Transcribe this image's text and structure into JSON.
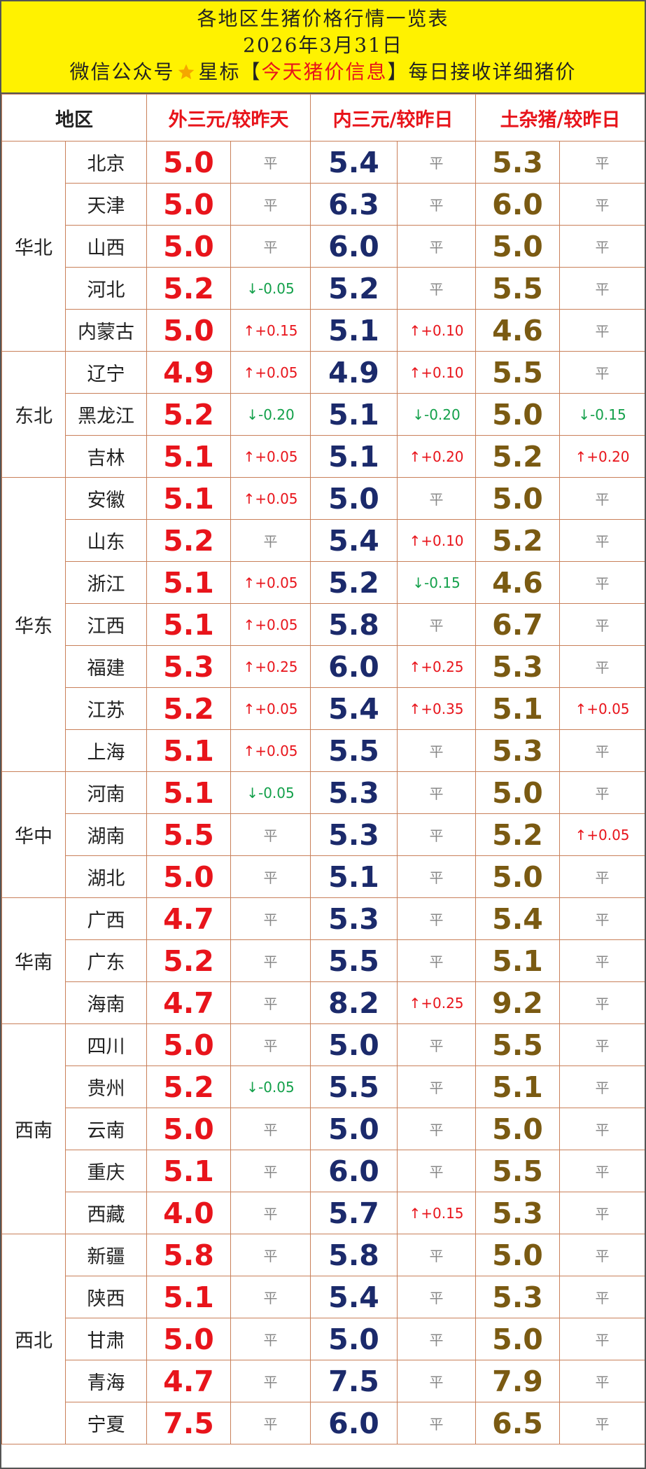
{
  "header": {
    "title": "各地区生猪价格行情一览表",
    "date": "2026年3月31日",
    "subtitle_prefix": "微信公众号",
    "subtitle_mid": "星标【",
    "subtitle_highlight": "今天猪价信息",
    "subtitle_suffix": "】每日接收详细猪价"
  },
  "table": {
    "columns": [
      "地区",
      "外三元/较昨天",
      "内三元/较昨日",
      "土杂猪/较昨日"
    ],
    "groups": [
      {
        "region": "华北",
        "rows": [
          {
            "name": "北京",
            "values": [
              "5.0",
              "平",
              "5.4",
              "平",
              "5.3",
              "平"
            ]
          },
          {
            "name": "天津",
            "values": [
              "5.0",
              "平",
              "6.3",
              "平",
              "6.0",
              "平"
            ]
          },
          {
            "name": "山西",
            "values": [
              "5.0",
              "平",
              "6.0",
              "平",
              "5.0",
              "平"
            ]
          },
          {
            "name": "河北",
            "values": [
              "5.2",
              "↓-0.05",
              "5.2",
              "平",
              "5.5",
              "平"
            ]
          },
          {
            "name": "内蒙古",
            "values": [
              "5.0",
              "↑+0.15",
              "5.1",
              "↑+0.10",
              "4.6",
              "平"
            ]
          }
        ]
      },
      {
        "region": "东北",
        "rows": [
          {
            "name": "辽宁",
            "values": [
              "4.9",
              "↑+0.05",
              "4.9",
              "↑+0.10",
              "5.5",
              "平"
            ]
          },
          {
            "name": "黑龙江",
            "values": [
              "5.2",
              "↓-0.20",
              "5.1",
              "↓-0.20",
              "5.0",
              "↓-0.15"
            ]
          },
          {
            "name": "吉林",
            "values": [
              "5.1",
              "↑+0.05",
              "5.1",
              "↑+0.20",
              "5.2",
              "↑+0.20"
            ]
          }
        ]
      },
      {
        "region": "华东",
        "rows": [
          {
            "name": "安徽",
            "values": [
              "5.1",
              "↑+0.05",
              "5.0",
              "平",
              "5.0",
              "平"
            ]
          },
          {
            "name": "山东",
            "values": [
              "5.2",
              "平",
              "5.4",
              "↑+0.10",
              "5.2",
              "平"
            ]
          },
          {
            "name": "浙江",
            "values": [
              "5.1",
              "↑+0.05",
              "5.2",
              "↓-0.15",
              "4.6",
              "平"
            ]
          },
          {
            "name": "江西",
            "values": [
              "5.1",
              "↑+0.05",
              "5.8",
              "平",
              "6.7",
              "平"
            ]
          },
          {
            "name": "福建",
            "values": [
              "5.3",
              "↑+0.25",
              "6.0",
              "↑+0.25",
              "5.3",
              "平"
            ]
          },
          {
            "name": "江苏",
            "values": [
              "5.2",
              "↑+0.05",
              "5.4",
              "↑+0.35",
              "5.1",
              "↑+0.05"
            ]
          },
          {
            "name": "上海",
            "values": [
              "5.1",
              "↑+0.05",
              "5.5",
              "平",
              "5.3",
              "平"
            ]
          }
        ]
      },
      {
        "region": "华中",
        "rows": [
          {
            "name": "河南",
            "values": [
              "5.1",
              "↓-0.05",
              "5.3",
              "平",
              "5.0",
              "平"
            ]
          },
          {
            "name": "湖南",
            "values": [
              "5.5",
              "平",
              "5.3",
              "平",
              "5.2",
              "↑+0.05"
            ]
          },
          {
            "name": "湖北",
            "values": [
              "5.0",
              "平",
              "5.1",
              "平",
              "5.0",
              "平"
            ]
          }
        ]
      },
      {
        "region": "华南",
        "rows": [
          {
            "name": "广西",
            "values": [
              "4.7",
              "平",
              "5.3",
              "平",
              "5.4",
              "平"
            ]
          },
          {
            "name": "广东",
            "values": [
              "5.2",
              "平",
              "5.5",
              "平",
              "5.1",
              "平"
            ]
          },
          {
            "name": "海南",
            "values": [
              "4.7",
              "平",
              "8.2",
              "↑+0.25",
              "9.2",
              "平"
            ]
          }
        ]
      },
      {
        "region": "西南",
        "rows": [
          {
            "name": "四川",
            "values": [
              "5.0",
              "平",
              "5.0",
              "平",
              "5.5",
              "平"
            ]
          },
          {
            "name": "贵州",
            "values": [
              "5.2",
              "↓-0.05",
              "5.5",
              "平",
              "5.1",
              "平"
            ]
          },
          {
            "name": "云南",
            "values": [
              "5.0",
              "平",
              "5.0",
              "平",
              "5.0",
              "平"
            ]
          },
          {
            "name": "重庆",
            "values": [
              "5.1",
              "平",
              "6.0",
              "平",
              "5.5",
              "平"
            ]
          },
          {
            "name": "西藏",
            "values": [
              "4.0",
              "平",
              "5.7",
              "↑+0.15",
              "5.3",
              "平"
            ]
          }
        ]
      },
      {
        "region": "西北",
        "rows": [
          {
            "name": "新疆",
            "values": [
              "5.8",
              "平",
              "5.8",
              "平",
              "5.0",
              "平"
            ]
          },
          {
            "name": "陕西",
            "values": [
              "5.1",
              "平",
              "5.4",
              "平",
              "5.3",
              "平"
            ]
          },
          {
            "name": "甘肃",
            "values": [
              "5.0",
              "平",
              "5.0",
              "平",
              "5.0",
              "平"
            ]
          },
          {
            "name": "青海",
            "values": [
              "4.7",
              "平",
              "7.5",
              "平",
              "7.9",
              "平"
            ]
          },
          {
            "name": "宁夏",
            "values": [
              "7.5",
              "平",
              "6.0",
              "平",
              "6.5",
              "平"
            ]
          }
        ]
      }
    ]
  }
}
